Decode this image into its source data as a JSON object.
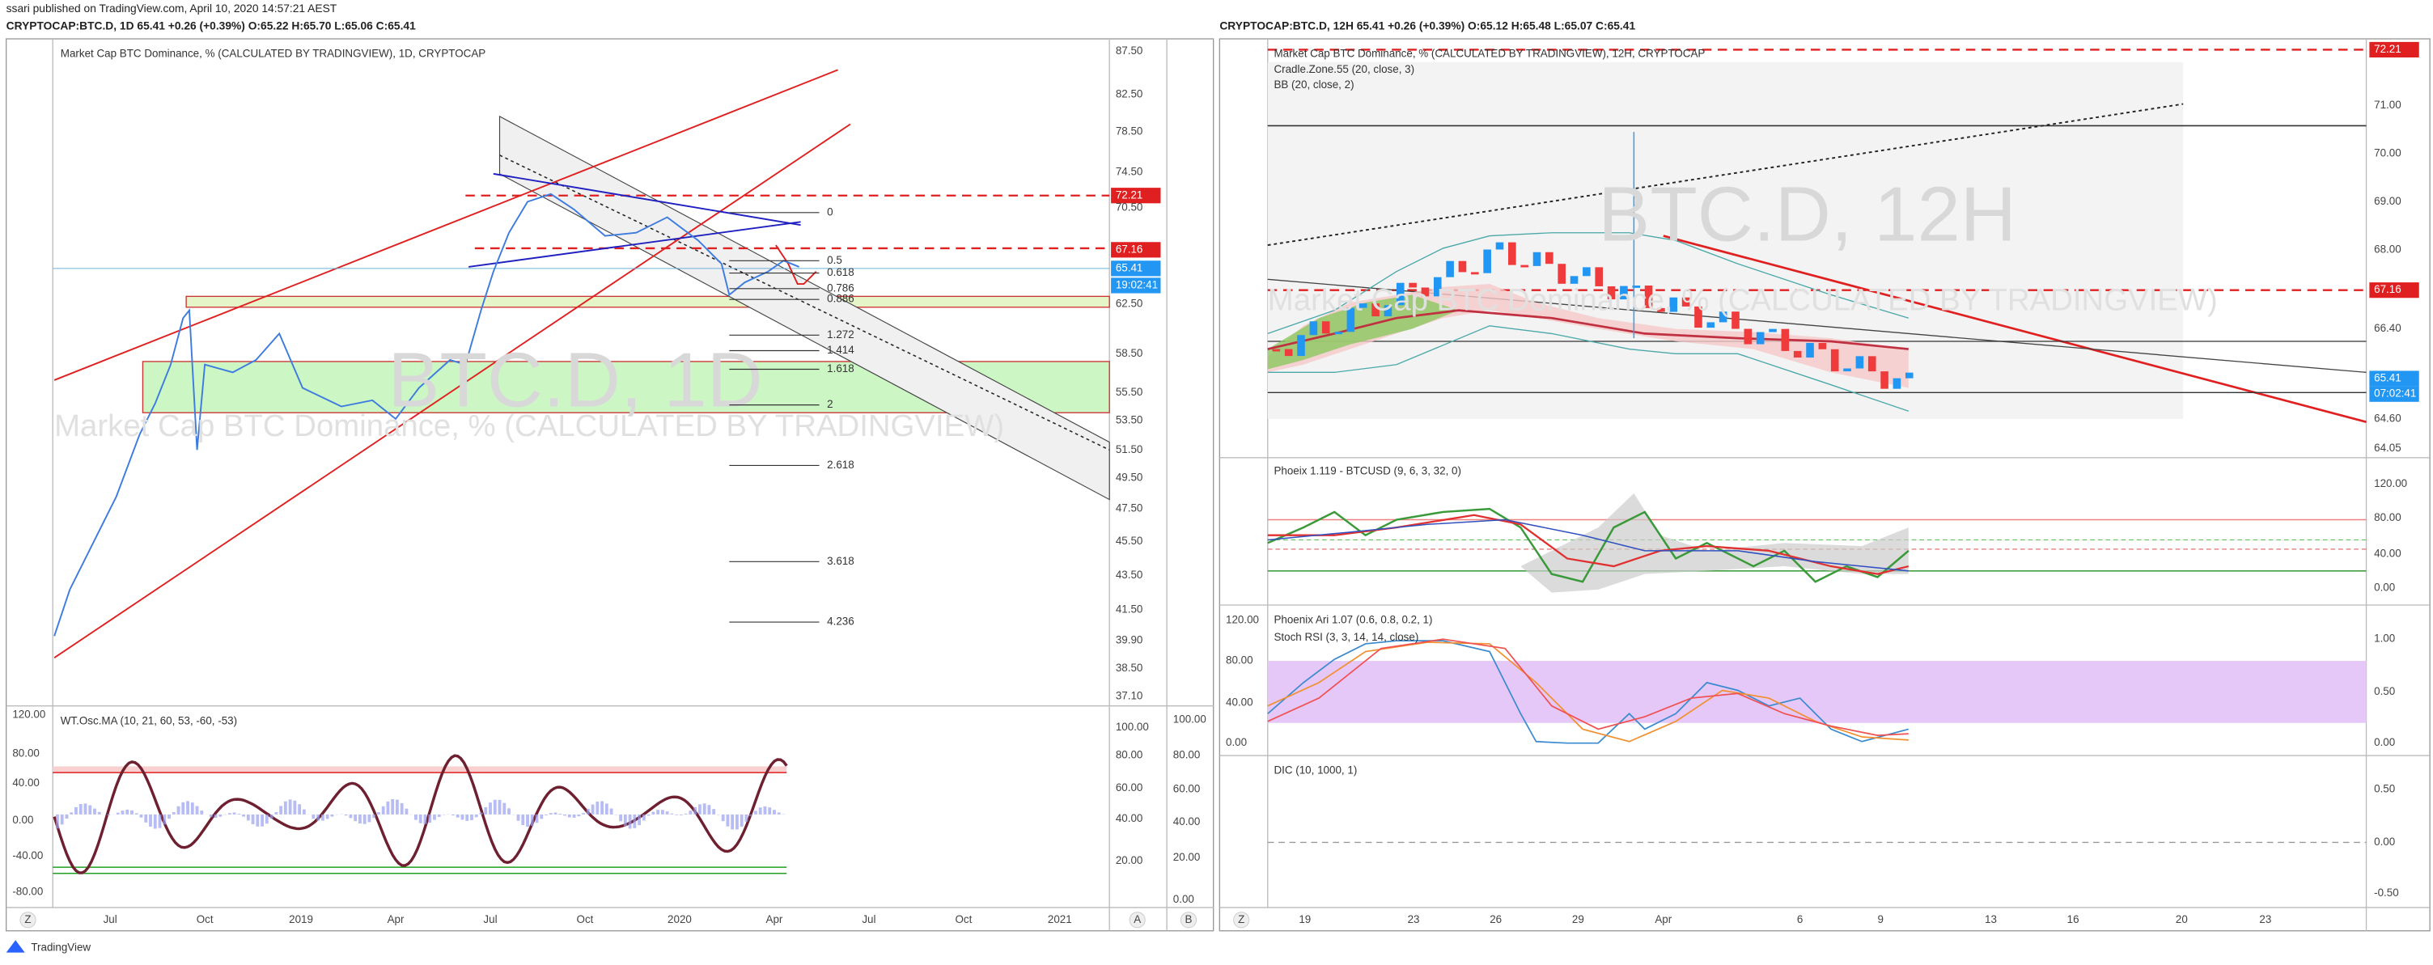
{
  "header": {
    "publisher": "ssari published on TradingView.com, April 10, 2020 14:57:21 AEST",
    "left_symbol": "CRYPTOCAP:BTC.D, 1D  65.41 +0.26 (+0.39%) O:65.22 H:65.70 L:65.06 C:65.41",
    "right_symbol": "CRYPTOCAP:BTC.D, 12H  65.41 +0.26 (+0.39%) O:65.12 H:65.48 L:65.07 C:65.41"
  },
  "left": {
    "title": "Market Cap BTC Dominance, % (CALCULATED BY TRADINGVIEW), 1D, CRYPTOCAP",
    "watermark": "BTC.D, 1D",
    "watermark_sub": "Market Cap BTC Dominance, % (CALCULATED BY TRADINGVIEW)",
    "price_labels": [
      "87.50",
      "82.50",
      "78.50",
      "74.50",
      "72.21",
      "70.50",
      "67.16",
      "65.41",
      "19:02:41",
      "62.50",
      "58.50",
      "55.50",
      "53.50",
      "51.50",
      "49.50",
      "47.50",
      "45.50",
      "43.50",
      "41.50",
      "39.90",
      "38.50",
      "37.10"
    ],
    "fib_levels": [
      "0",
      "0.5",
      "0.618",
      "0.786",
      "0.886",
      "1.272",
      "1.414",
      "1.618",
      "2",
      "2.618",
      "3.618",
      "4.236"
    ],
    "osc_title": "WT.Osc.MA (10, 21, 60, 53, -60, -53)",
    "osc_left_labels": [
      "120.00",
      "80.00",
      "40.00",
      "0.00",
      "-40.00",
      "-80.00"
    ],
    "osc_mid_labels": [
      "100.00",
      "80.00",
      "60.00",
      "40.00",
      "20.00"
    ],
    "osc_right_labels": [
      "100.00",
      "80.00",
      "60.00",
      "40.00",
      "20.00",
      "0.00"
    ],
    "time_labels": [
      "Jul",
      "Oct",
      "2019",
      "Apr",
      "Jul",
      "Oct",
      "2020",
      "Apr",
      "Jul",
      "Oct",
      "2021"
    ],
    "buttons": [
      "Z",
      "A",
      "B"
    ]
  },
  "right": {
    "title": "Market Cap BTC Dominance, % (CALCULATED BY TRADINGVIEW), 12H, CRYPTOCAP",
    "indicator_1": "Cradle.Zone.55 (20, close, 3)",
    "indicator_2": "BB (20, close, 2)",
    "watermark": "BTC.D, 12H",
    "watermark_sub": "Market Cap BTC Dominance, % (CALCULATED BY TRADINGVIEW)",
    "price_labels": [
      "72.21",
      "71.00",
      "70.00",
      "69.00",
      "68.00",
      "67.16",
      "66.40",
      "65.41",
      "07:02:41",
      "64.60",
      "64.05"
    ],
    "pane2_title": "Phoeix 1.119 - BTCUSD (9, 6, 3, 32, 0)",
    "pane2_labels": [
      "120.00",
      "80.00",
      "40.00",
      "0.00"
    ],
    "pane3_title": "Phoenix Ari 1.07 (0.6, 0.8, 0.2, 1)",
    "pane3_subtitle": "Stoch RSI (3, 3, 14, 14, close)",
    "pane3_left_labels": [
      "120.00",
      "80.00",
      "40.00",
      "0.00"
    ],
    "pane3_right_labels": [
      "1.00",
      "0.50",
      "0.00"
    ],
    "pane4_title": "DIC (10, 1000, 1)",
    "pane4_labels": [
      "0.50",
      "0.00",
      "-0.50"
    ],
    "time_labels": [
      "19",
      "23",
      "26",
      "29",
      "Apr",
      "6",
      "9",
      "13",
      "16",
      "20",
      "23"
    ],
    "buttons": [
      "Z"
    ]
  },
  "footer": {
    "brand": "TradingView"
  }
}
